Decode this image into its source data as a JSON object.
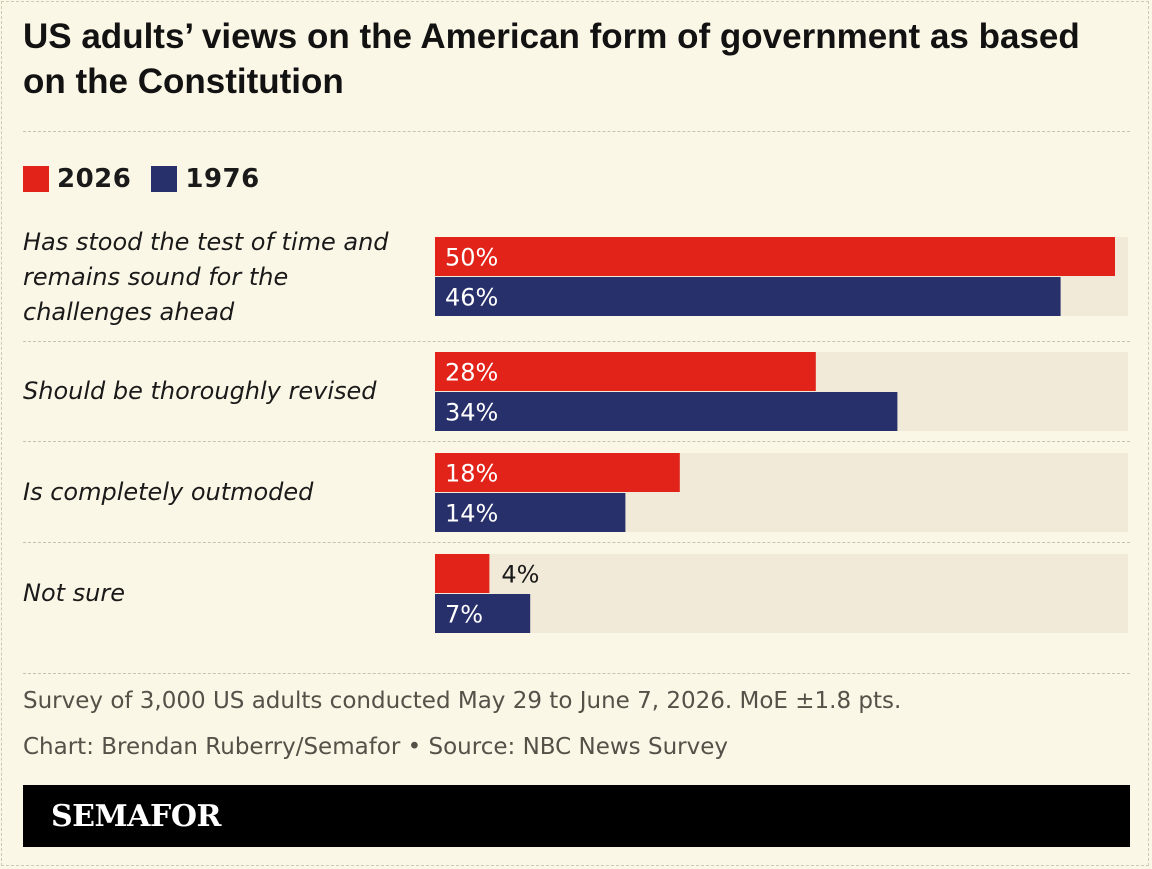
{
  "chart_data": {
    "type": "bar",
    "orientation": "horizontal",
    "title": "US adults’ views on the American form of government as based on the Constitution",
    "categories": [
      "Has stood the test of time and remains sound for the challenges ahead",
      "Should be thoroughly revised",
      "Is completely outmoded",
      "Not sure"
    ],
    "series": [
      {
        "name": "2026",
        "values": [
          50,
          28,
          18,
          4
        ],
        "labels": [
          "50%",
          "28%",
          "18%",
          "4%"
        ]
      },
      {
        "name": "1976",
        "values": [
          46,
          34,
          14,
          7
        ],
        "labels": [
          "46%",
          "34%",
          "14%",
          "7%"
        ]
      }
    ],
    "xlim": [
      0,
      51
    ],
    "unit": "%",
    "legend": "top-left",
    "grid": false,
    "colors": {
      "2026": "#e2231a",
      "1976": "#27306b",
      "track": "#f1ead8"
    }
  },
  "legend": [
    {
      "label": "2026",
      "color": "#e2231a"
    },
    {
      "label": "1976",
      "color": "#27306b"
    }
  ],
  "notes": {
    "survey": "Survey of 3,000 US adults conducted May 29 to June 7, 2026. MoE ±1.8 pts.",
    "credit": "Chart: Brendan Ruberry/Semafor • Source: NBC News Survey"
  },
  "footer": {
    "brand": "SEMAFOR"
  }
}
